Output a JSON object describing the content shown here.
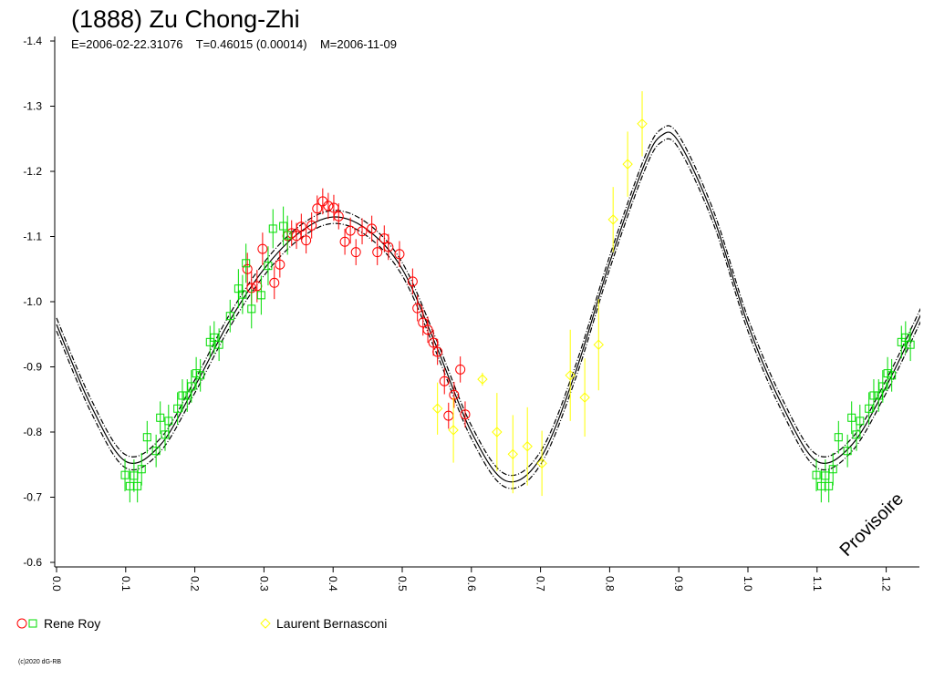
{
  "chart_data": {
    "type": "lightcurve",
    "title": "(1888) Zu Chong-Zhi",
    "subtitle": "E=2006-02-22.31076    T=0.46015 (0.00014)    M=2006-11-09",
    "annotation": "Provisoire",
    "footer": "(c)2020 dG-RB",
    "xlim": [
      0,
      1.25
    ],
    "ylim": [
      -1.4,
      -0.6
    ],
    "xticks": [
      {
        "value": 0,
        "label": "0.0"
      },
      0.1,
      0.2,
      0.3,
      0.4,
      0.5,
      0.6,
      0.7,
      0.8,
      0.9,
      {
        "value": 1,
        "label": "1.0"
      },
      1.1,
      1.2
    ],
    "yticks": [
      -1.4,
      -1.3,
      -1.2,
      -1.1,
      {
        "value": -1,
        "label": "-1.0"
      },
      -0.9,
      -0.8,
      -0.7,
      -0.6
    ],
    "fit_x": [
      0,
      0.05,
      0.1,
      0.15,
      0.2,
      0.25,
      0.3,
      0.35,
      0.4,
      0.45,
      0.5,
      0.55,
      0.6,
      0.65,
      0.7,
      0.75,
      0.8,
      0.85,
      0.875,
      0.9,
      0.95,
      1,
      1.05,
      1.1,
      1.15,
      1.2,
      1.25
    ],
    "fit": [
      {
        "style": "solid",
        "color": "#000000",
        "values": [
          -0.965,
          -0.84,
          -0.755,
          -0.78,
          -0.87,
          -0.97,
          -1.05,
          -1.105,
          -1.13,
          -1.11,
          -1.05,
          -0.93,
          -0.8,
          -0.725,
          -0.76,
          -0.89,
          -1.06,
          -1.21,
          -1.255,
          -1.245,
          -1.13,
          -0.965,
          -0.84,
          -0.755,
          -0.78,
          -0.87,
          -0.98
        ]
      },
      {
        "style": "dashdot",
        "color": "#000000",
        "values": [
          -0.975,
          -0.85,
          -0.765,
          -0.79,
          -0.88,
          -0.98,
          -1.06,
          -1.115,
          -1.14,
          -1.12,
          -1.06,
          -0.94,
          -0.81,
          -0.735,
          -0.77,
          -0.9,
          -1.07,
          -1.22,
          -1.265,
          -1.255,
          -1.14,
          -0.975,
          -0.85,
          -0.765,
          -0.79,
          -0.88,
          -0.99
        ]
      },
      {
        "style": "dashdot",
        "color": "#000000",
        "values": [
          -0.955,
          -0.83,
          -0.745,
          -0.77,
          -0.86,
          -0.96,
          -1.04,
          -1.095,
          -1.12,
          -1.1,
          -1.04,
          -0.92,
          -0.79,
          -0.715,
          -0.75,
          -0.88,
          -1.05,
          -1.2,
          -1.245,
          -1.235,
          -1.12,
          -0.955,
          -0.83,
          -0.745,
          -0.77,
          -0.86,
          -0.97
        ]
      }
    ],
    "series": [
      {
        "name": "Rene Roy",
        "sessions": [
          {
            "color": "#ff0000",
            "marker": "circle",
            "x": [
              0.276,
              0.282,
              0.29,
              0.298,
              0.315,
              0.323,
              0.334,
              0.34,
              0.347,
              0.354,
              0.361,
              0.369,
              0.377,
              0.385,
              0.393,
              0.401,
              0.408,
              0.417,
              0.425,
              0.433,
              0.442,
              0.456,
              0.464,
              0.474,
              0.48,
              0.496,
              0.515,
              0.522,
              0.53,
              0.537,
              0.545,
              0.551,
              0.561,
              0.567,
              0.575,
              0.584,
              0.591
            ],
            "values": [
              -1.05,
              -1.021,
              -1.024,
              -1.081,
              -1.029,
              -1.057,
              -1.101,
              -1.105,
              -1.101,
              -1.115,
              -1.094,
              -1.117,
              -1.143,
              -1.154,
              -1.147,
              -1.144,
              -1.131,
              -1.092,
              -1.109,
              -1.076,
              -1.108,
              -1.112,
              -1.076,
              -1.097,
              -1.084,
              -1.073,
              -1.031,
              -0.99,
              -0.968,
              -0.957,
              -0.937,
              -0.923,
              -0.878,
              -0.825,
              -0.857,
              -0.896,
              -0.827
            ],
            "errors": [
              0.025,
              0.025,
              0.025,
              0.025,
              0.025,
              0.02,
              0.02,
              0.02,
              0.02,
              0.02,
              0.02,
              0.02,
              0.02,
              0.02,
              0.02,
              0.02,
              0.02,
              0.02,
              0.02,
              0.02,
              0.02,
              0.02,
              0.02,
              0.02,
              0.02,
              0.02,
              0.02,
              0.02,
              0.02,
              0.02,
              0.02,
              0.02,
              0.02,
              0.02,
              0.02,
              0.02,
              0.02
            ]
          },
          {
            "color": "#00dd00",
            "marker": "square",
            "x": [
              0.099,
              0.106,
              0.112,
              0.117,
              0.123,
              0.131,
              0.144,
              0.15,
              0.157,
              0.162,
              0.175,
              0.182,
              0.189,
              0.195,
              0.202,
              0.208,
              0.222,
              0.228,
              0.235,
              0.251,
              0.263,
              0.269,
              0.274,
              0.282,
              0.296,
              0.306,
              0.313,
              0.328,
              0.334
            ],
            "values": [
              -0.734,
              -0.717,
              -0.733,
              -0.717,
              -0.743,
              -0.792,
              -0.771,
              -0.822,
              -0.796,
              -0.817,
              -0.836,
              -0.856,
              -0.856,
              -0.87,
              -0.89,
              -0.887,
              -0.938,
              -0.945,
              -0.934,
              -0.978,
              -1.02,
              -1.011,
              -1.059,
              -0.989,
              -1.01,
              -1.055,
              -1.112,
              -1.116,
              -1.102
            ],
            "errors": [
              0.025,
              0.025,
              0.025,
              0.025,
              0.025,
              0.025,
              0.025,
              0.025,
              0.025,
              0.025,
              0.025,
              0.025,
              0.025,
              0.025,
              0.025,
              0.025,
              0.025,
              0.025,
              0.025,
              0.025,
              0.03,
              0.03,
              0.03,
              0.03,
              0.03,
              0.03,
              0.03,
              0.03,
              0.03
            ]
          }
        ]
      },
      {
        "name": "Laurent Bernasconi",
        "sessions": [
          {
            "color": "#ffff00",
            "marker": "diamond",
            "x": [
              0.551,
              0.574,
              0.616,
              0.637,
              0.66,
              0.681,
              0.702,
              0.743,
              0.764,
              0.784,
              0.805,
              0.826,
              0.847
            ],
            "values": [
              -0.836,
              -0.803,
              -0.881,
              -0.8,
              -0.766,
              -0.778,
              -0.752,
              -0.887,
              -0.853,
              -0.934,
              -1.126,
              -1.211,
              -1.273
            ],
            "errors": [
              0.04,
              0.05,
              0.01,
              0.06,
              0.06,
              0.06,
              0.05,
              0.07,
              0.06,
              0.07,
              0.05,
              0.05,
              0.05
            ]
          }
        ]
      }
    ]
  }
}
